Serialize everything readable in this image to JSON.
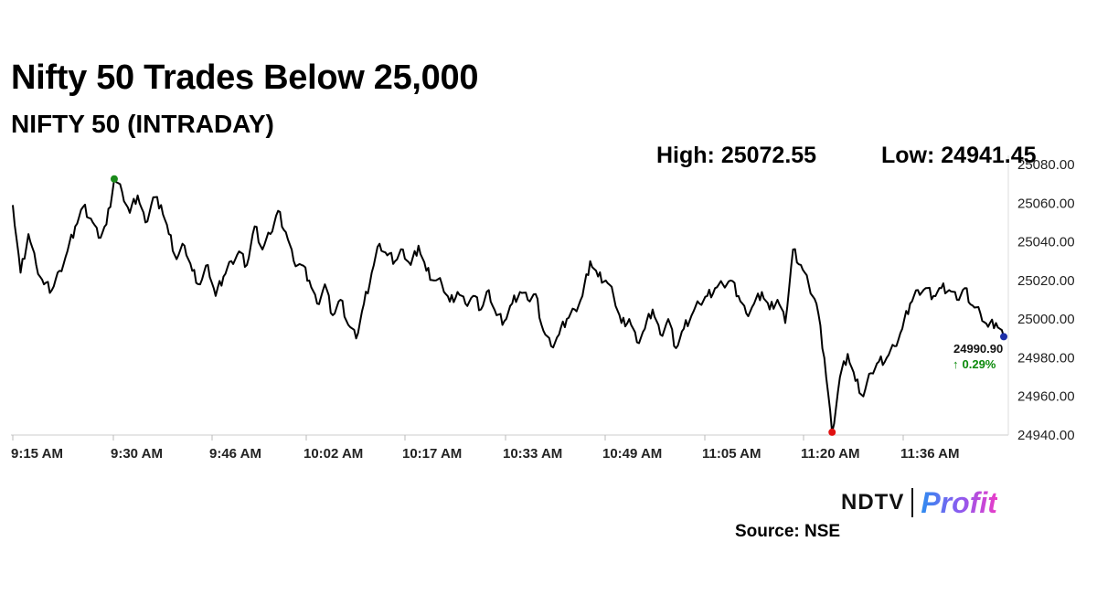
{
  "header": {
    "title": "Nifty 50 Trades Below 25,000",
    "subtitle": "NIFTY 50 (INTRADAY)",
    "high_text": "High: 25072.55",
    "low_text": "Low: 24941.45"
  },
  "last": {
    "value": "24990.90",
    "change": "0.29%",
    "arrow": "↑"
  },
  "footer": {
    "logo_left": "NDTV",
    "logo_right": "Profit",
    "source": "Source: NSE"
  },
  "colors": {
    "line": "#000000",
    "high_marker": "#1a8a1a",
    "low_marker": "#e01010",
    "last_marker": "#1c2fa8",
    "up": "#0a8a0a"
  },
  "chart_data": {
    "type": "line",
    "title": "NIFTY 50 (INTRADAY)",
    "x_tick_labels": [
      "9:15 AM",
      "9:30 AM",
      "9:46 AM",
      "10:02 AM",
      "10:17 AM",
      "10:33 AM",
      "10:49 AM",
      "11:05 AM",
      "11:20 AM",
      "11:36 AM"
    ],
    "y_tick_labels": [
      "24940.00",
      "24960.00",
      "24980.00",
      "25000.00",
      "25020.00",
      "25040.00",
      "25060.00",
      "25080.00"
    ],
    "ylim": [
      24940,
      25080
    ],
    "grid": false,
    "high": 25072.55,
    "low": 24941.45,
    "last": 24990.9,
    "series": [
      {
        "values": [
          25059,
          25024,
          25044,
          25028,
          25018,
          25015,
          25025,
          25035,
          25048,
          25058,
          25052,
          25042,
          25049,
          25072.55,
          25066,
          25055,
          25064,
          25050,
          25063,
          25059,
          25044,
          25031,
          25038,
          25025,
          25018,
          25028,
          25012,
          25022,
          25030,
          25035,
          25028,
          25048,
          25036,
          25044,
          25056,
          25045,
          25030,
          25028,
          25020,
          25008,
          25018,
          25002,
          25010,
          24997,
          24990,
          25008,
          25024,
          25039,
          25033,
          25030,
          25036,
          25028,
          25038,
          25025,
          25020,
          25018,
          25009,
          25014,
          25008,
          25012,
          25005,
          25015,
          25002,
          24999,
          25008,
          25014,
          25010,
          25013,
          24994,
          24986,
          24992,
          25000,
          25005,
          25012,
          25030,
          25022,
          25020,
          25012,
          24998,
          25000,
          24988,
          24995,
          25005,
          24992,
          25000,
          24985,
          24995,
          25002,
          25008,
          25012,
          25016,
          25018,
          25020,
          25012,
          25003,
          25008,
          25014,
          25005,
          25010,
          24998,
          25036,
          25028,
          25018,
          25008,
          24980,
          24941.45,
          24970,
          24982,
          24968,
          24960,
          24972,
          24978,
          24980,
          24986,
          24995,
          25008,
          25015,
          25016,
          25012,
          25016,
          25015,
          25010,
          25016,
          25007,
          25003,
          24996,
          24998,
          24990.9
        ]
      }
    ]
  }
}
